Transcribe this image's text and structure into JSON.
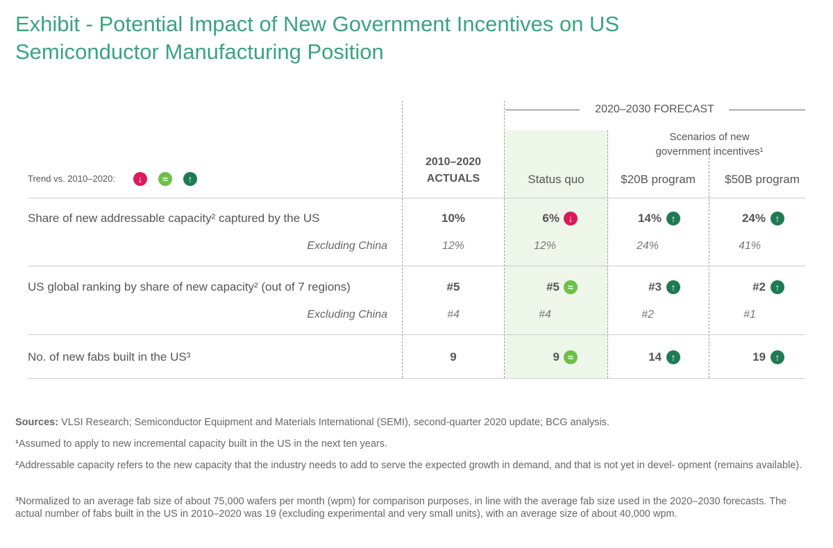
{
  "header": {
    "title": [
      "Exhibit - Potential Impact of New Government Incentives on US",
      "Semiconductor Manufacturing Position"
    ]
  },
  "trend_legend": {
    "label": "Trend vs. 2010–2020:",
    "icons": [
      {
        "symbol": "↓",
        "color": "#d81b5b"
      },
      {
        "symbol": "≈",
        "color": "#6cc04a"
      },
      {
        "symbol": "↑",
        "color": "#1e7a53"
      }
    ]
  },
  "table": {
    "columns": {
      "actuals": [
        "2010–2020",
        "ACTUALS"
      ],
      "forecast": "2020–2030 FORECAST",
      "scenarios": [
        "Scenarios of new",
        "government incentives¹"
      ],
      "status_quo": "Status quo",
      "program_20": "$20B program",
      "program_50": "$50B program"
    },
    "rows": [
      {
        "label": "Share of new addressable capacity² captured by the US",
        "cells": [
          {
            "value": "10%"
          },
          {
            "value": "6%",
            "trend": "↓"
          },
          {
            "value": "14%",
            "trend": "↑"
          },
          {
            "value": "24%",
            "trend": "↑"
          }
        ],
        "sub_label": "Excluding China",
        "sub_cells": [
          "12%",
          "12%",
          "24%",
          "41%"
        ]
      },
      {
        "label": "US global ranking by share of new capacity² (out of 7 regions)",
        "cells": [
          {
            "value": "#5"
          },
          {
            "value": "#5",
            "trend": "≈"
          },
          {
            "value": "#3",
            "trend": "↑"
          },
          {
            "value": "#2",
            "trend": "↑"
          }
        ],
        "sub_label": "Excluding China",
        "sub_cells": [
          "#4",
          "#4",
          "#2",
          "#1"
        ]
      },
      {
        "label": "No. of new fabs built in the US³",
        "cells": [
          {
            "value": "9"
          },
          {
            "value": "9",
            "trend": "≈"
          },
          {
            "value": "14",
            "trend": "↑"
          },
          {
            "value": "19",
            "trend": "↑"
          }
        ]
      }
    ]
  },
  "footnotes": {
    "sources": {
      "label": "Sources:",
      "text": "VLSI Research; Semiconductor Equipment and Materials International (SEMI), second-quarter 2020 update; BCG analysis."
    },
    "notes": [
      {
        "marker": "¹",
        "text": "Assumed to apply to new incremental capacity built in the US in the next ten years."
      },
      {
        "marker": "²",
        "text": "Addressable capacity refers to the new capacity that the industry needs to add to serve the expected growth in demand, and that is not yet in devel- opment (remains available)."
      },
      {
        "marker": "³",
        "text": "Normalized to an average fab size of about 75,000 wafers per month (wpm) for comparison purposes, in line with the average fab size used in the 2020–2030 forecasts. The actual number of fabs built in the US in 2010–2020 was 19 (excluding experimental and very small units), with an average size of about 40,000 wpm."
      }
    ]
  }
}
